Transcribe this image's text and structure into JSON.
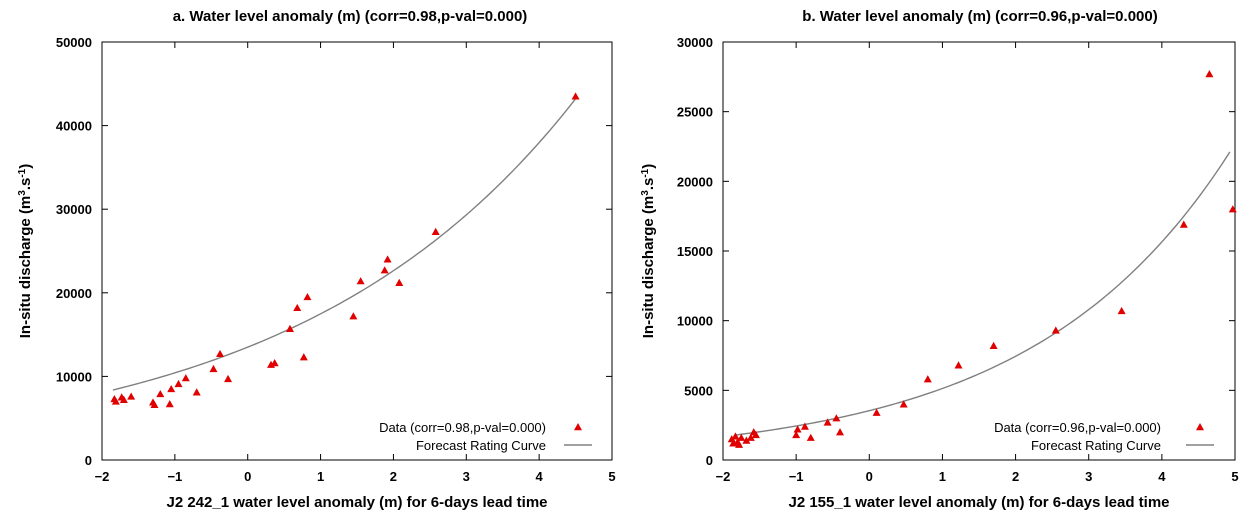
{
  "colors": {
    "data": "#e00000",
    "curve": "#808080",
    "frame": "#000000"
  },
  "chart_data": [
    {
      "type": "scatter",
      "title": "a. Water level anomaly (m) (corr=0.98,p-val=0.000)",
      "xlabel": "J2 242_1 water level anomaly (m) for 6-days lead time",
      "ylabel_main": "In-situ discharge (m",
      "ylabel_sup1": "3",
      "ylabel_mid": ".s",
      "ylabel_sup2": "-1",
      "ylabel_end": ")",
      "xlim": [
        -2,
        5
      ],
      "ylim": [
        0,
        50000
      ],
      "xticks": [
        -2,
        -1,
        0,
        1,
        2,
        3,
        4,
        5
      ],
      "yticks": [
        0,
        10000,
        20000,
        30000,
        40000,
        50000
      ],
      "legend_position": "bottom-right",
      "grid": false,
      "series": [
        {
          "name": "Data (corr=0.98,p-val=0.000)",
          "marker": "triangle",
          "x": [
            -1.83,
            -1.81,
            -1.73,
            -1.7,
            -1.6,
            -1.3,
            -1.28,
            -1.2,
            -1.07,
            -1.05,
            -0.95,
            -0.85,
            -0.7,
            -0.47,
            -0.38,
            -0.27,
            0.32,
            0.37,
            0.58,
            0.68,
            0.77,
            0.82,
            1.45,
            1.55,
            1.88,
            1.92,
            2.08,
            2.58,
            4.5
          ],
          "y": [
            7300,
            7000,
            7500,
            7200,
            7600,
            6900,
            6600,
            7900,
            6700,
            8500,
            9100,
            9800,
            8100,
            10900,
            12700,
            9700,
            11400,
            11600,
            15700,
            18200,
            12300,
            19500,
            17200,
            21400,
            22700,
            24000,
            21200,
            27300,
            43500
          ]
        },
        {
          "name": "Forecast Rating Curve",
          "type": "line",
          "curve": {
            "form": "exponential",
            "a": 13500,
            "b": 0.2585,
            "x_from": -1.85,
            "x_to": 4.5
          }
        }
      ]
    },
    {
      "type": "scatter",
      "title": "b. Water level anomaly (m) (corr=0.96,p-val=0.000)",
      "xlabel": "J2 155_1 water level anomaly (m) for 6-days lead time",
      "ylabel_main": "In-situ discharge (m",
      "ylabel_sup1": "3",
      "ylabel_mid": ".s",
      "ylabel_sup2": "-1",
      "ylabel_end": ")",
      "xlim": [
        -2,
        5
      ],
      "ylim": [
        0,
        30000
      ],
      "xticks": [
        -2,
        -1,
        0,
        1,
        2,
        3,
        4,
        5
      ],
      "yticks": [
        0,
        5000,
        10000,
        15000,
        20000,
        25000,
        30000
      ],
      "legend_position": "bottom-right",
      "grid": false,
      "series": [
        {
          "name": "Data (corr=0.96,p-val=0.000)",
          "marker": "triangle",
          "x": [
            -1.88,
            -1.86,
            -1.83,
            -1.8,
            -1.78,
            -1.75,
            -1.68,
            -1.62,
            -1.58,
            -1.55,
            -1.0,
            -0.98,
            -0.88,
            -0.8,
            -0.57,
            -0.45,
            -0.4,
            0.1,
            0.47,
            0.8,
            1.22,
            1.7,
            2.55,
            3.45,
            4.3,
            4.65,
            4.97
          ],
          "y": [
            1500,
            1200,
            1700,
            1300,
            1100,
            1600,
            1400,
            1600,
            2000,
            1800,
            1800,
            2200,
            2400,
            1600,
            2700,
            3000,
            2000,
            3400,
            4000,
            5800,
            6800,
            8200,
            9300,
            10700,
            16900,
            27700,
            18000
          ]
        },
        {
          "name": "Forecast Rating Curve",
          "type": "line",
          "curve": {
            "form": "exponential",
            "a": 3540,
            "b": 0.3716,
            "x_from": -1.85,
            "x_to": 4.93
          }
        }
      ]
    }
  ]
}
